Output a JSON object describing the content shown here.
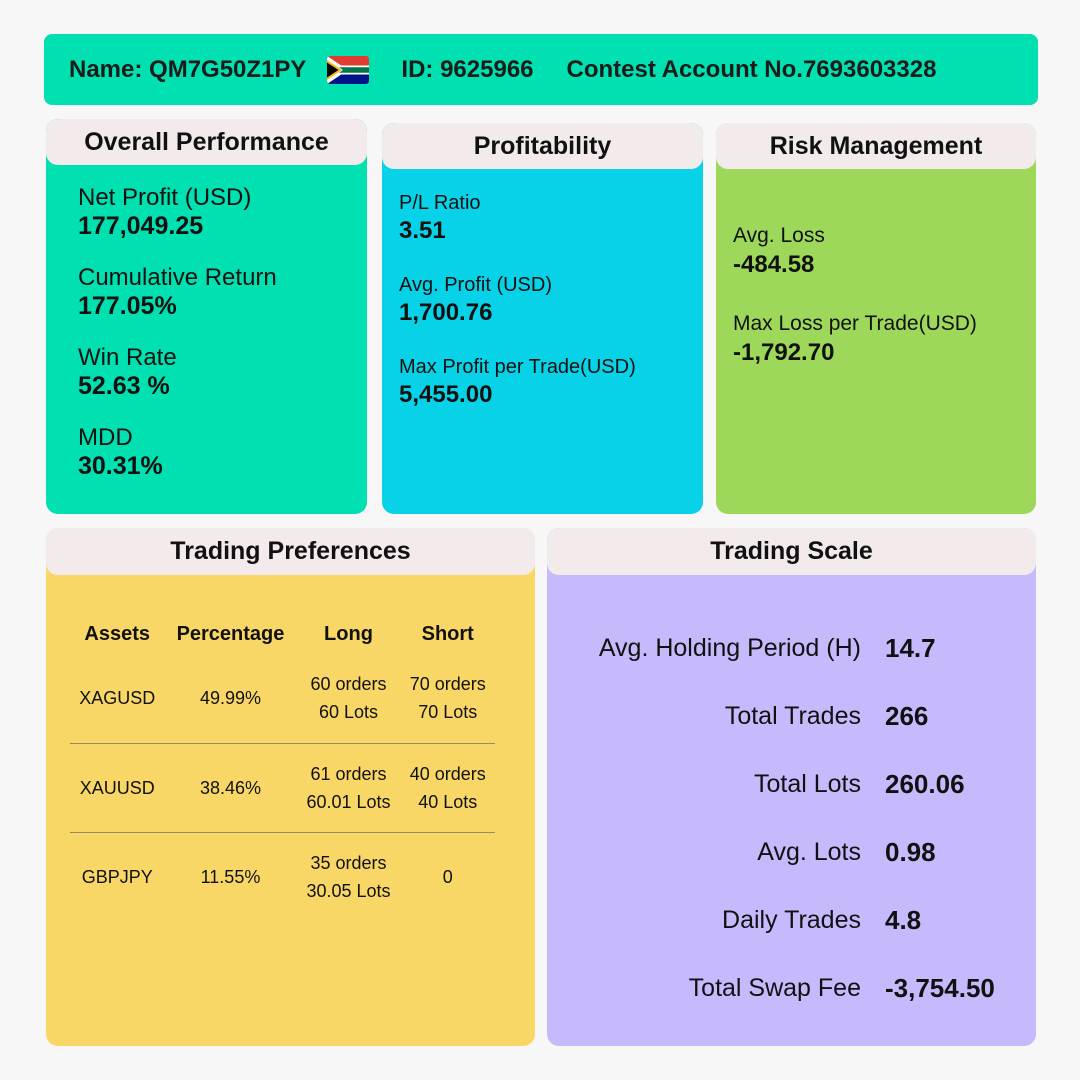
{
  "header": {
    "name": "Name: QM7G50Z1PY",
    "flag_icon": "south-africa-flag-icon",
    "id": "ID: 9625966",
    "account": "Contest Account No.7693603328"
  },
  "overall": {
    "title": "Overall Performance",
    "metrics": [
      {
        "label": "Net Profit (USD)",
        "value": "177,049.25"
      },
      {
        "label": "Cumulative Return",
        "value": "177.05%"
      },
      {
        "label": "Win Rate",
        "value": "52.63 %"
      },
      {
        "label": "MDD",
        "value": "30.31%"
      }
    ]
  },
  "profitability": {
    "title": "Profitability",
    "metrics": [
      {
        "label": "P/L Ratio",
        "value": "3.51"
      },
      {
        "label": "Avg. Profit (USD)",
        "value": "1,700.76"
      },
      {
        "label": "Max Profit per Trade(USD)",
        "value": "5,455.00"
      }
    ]
  },
  "risk": {
    "title": "Risk Management",
    "metrics": [
      {
        "label": "Avg. Loss",
        "value": "-484.58"
      },
      {
        "label": "Max Loss per Trade(USD)",
        "value": "-1,792.70"
      }
    ]
  },
  "preferences": {
    "title": "Trading Preferences",
    "columns": [
      "Assets",
      "Percentage",
      "Long",
      "Short"
    ],
    "rows": [
      {
        "asset": "XAGUSD",
        "percentage": "49.99%",
        "long_orders": "60 orders",
        "long_lots": "60 Lots",
        "short_orders": "70 orders",
        "short_lots": "70 Lots"
      },
      {
        "asset": "XAUUSD",
        "percentage": "38.46%",
        "long_orders": "61 orders",
        "long_lots": "60.01 Lots",
        "short_orders": "40 orders",
        "short_lots": "40 Lots"
      },
      {
        "asset": "GBPJPY",
        "percentage": "11.55%",
        "long_orders": "35 orders",
        "long_lots": "30.05 Lots",
        "short_orders": "0",
        "short_lots": ""
      }
    ]
  },
  "scale": {
    "title": "Trading Scale",
    "rows": [
      {
        "label": "Avg. Holding Period (H)",
        "value": "14.7"
      },
      {
        "label": "Total Trades",
        "value": "266"
      },
      {
        "label": "Total Lots",
        "value": "260.06"
      },
      {
        "label": "Avg. Lots",
        "value": "0.98"
      },
      {
        "label": "Daily Trades",
        "value": "4.8"
      },
      {
        "label": "Total Swap Fee",
        "value": "-3,754.50"
      }
    ]
  }
}
